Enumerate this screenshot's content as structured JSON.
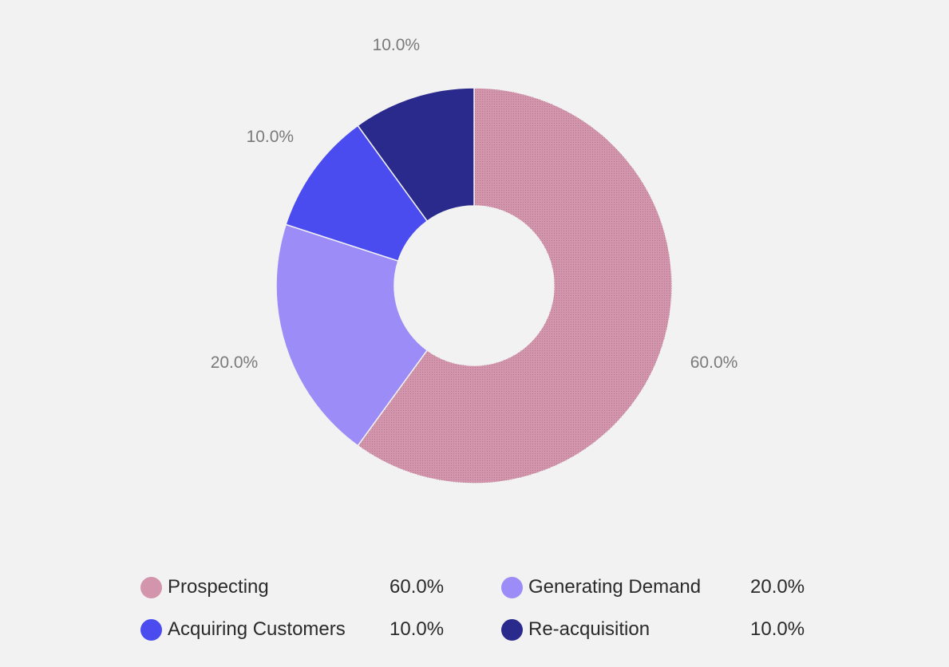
{
  "chart_data": {
    "type": "pie",
    "donut": true,
    "title": "",
    "series": [
      {
        "name": "Prospecting",
        "value": 60.0,
        "label": "60.0%",
        "color": "#d295ab"
      },
      {
        "name": "Generating Demand",
        "value": 20.0,
        "label": "20.0%",
        "color": "#9b8cf7"
      },
      {
        "name": "Acquiring Customers",
        "value": 10.0,
        "label": "10.0%",
        "color": "#4b4cef"
      },
      {
        "name": "Re-acquisition",
        "value": 10.0,
        "label": "10.0%",
        "color": "#292a8c"
      }
    ],
    "legend_position": "bottom"
  }
}
